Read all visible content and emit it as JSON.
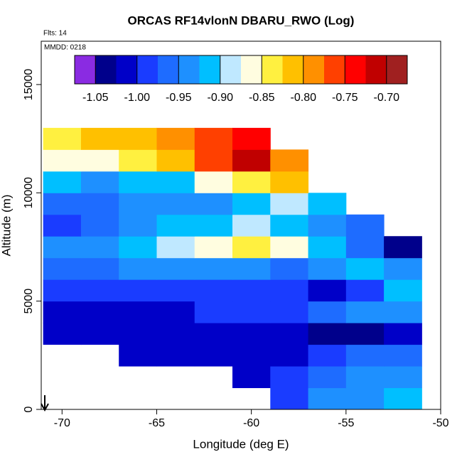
{
  "chart_data": {
    "type": "heatmap",
    "title": "ORCAS RF14vlonN DBARU_RWO (Log)",
    "subtitle": "Flts: 14",
    "annotation": "MMDD: 0218",
    "xlabel": "Longitude (deg E)",
    "ylabel": "Altitude (m)",
    "xlim": [
      -71.1,
      -50
    ],
    "ylim": [
      0,
      17000
    ],
    "xticks": [
      -70,
      -65,
      -60,
      -55,
      -50
    ],
    "yticks": [
      0,
      5000,
      10000,
      15000
    ],
    "x_edges": [
      -71,
      -69,
      -67,
      -65,
      -63,
      -61,
      -59,
      -57,
      -55,
      -53,
      -51
    ],
    "y_edges": [
      0,
      1000,
      2000,
      3000,
      4000,
      5000,
      6000,
      7000,
      8000,
      9000,
      10000,
      11000,
      12000,
      13000
    ],
    "z": [
      [
        null,
        null,
        null,
        null,
        null,
        null,
        -0.98,
        -0.95,
        -0.93,
        -0.92
      ],
      [
        null,
        null,
        null,
        null,
        null,
        -1.0,
        -0.98,
        -0.96,
        -0.95,
        -0.93
      ],
      [
        null,
        null,
        -1.0,
        -1.0,
        -1.0,
        -1.0,
        -1.0,
        -0.98,
        -0.97,
        -0.96
      ],
      [
        -1.0,
        -1.0,
        -1.01,
        -1.01,
        -1.0,
        -1.01,
        -1.02,
        -1.03,
        -1.03,
        -1.02
      ],
      [
        -1.0,
        -1.0,
        -1.0,
        -1.0,
        -0.99,
        -0.99,
        -0.98,
        -0.96,
        -0.95,
        -0.95
      ],
      [
        -0.99,
        -0.99,
        -0.98,
        -0.98,
        -0.98,
        -0.98,
        -0.99,
        -1.0,
        -0.98,
        -0.92
      ],
      [
        -0.96,
        -0.96,
        -0.95,
        -0.94,
        -0.94,
        -0.95,
        -0.96,
        -0.94,
        -0.92,
        -0.95
      ],
      [
        -0.94,
        -0.93,
        -0.9,
        -0.88,
        -0.87,
        -0.84,
        -0.86,
        -0.92,
        -0.96,
        -1.04
      ],
      [
        -0.98,
        -0.96,
        -0.94,
        -0.92,
        -0.9,
        -0.88,
        -0.91,
        -0.94,
        -0.97,
        null
      ],
      [
        -0.97,
        -0.96,
        -0.95,
        -0.94,
        -0.93,
        -0.9,
        -0.88,
        -0.9,
        null,
        null
      ],
      [
        -0.92,
        -0.93,
        -0.92,
        -0.9,
        -0.87,
        -0.83,
        -0.82,
        null,
        null,
        null
      ],
      [
        -0.87,
        -0.86,
        -0.84,
        -0.8,
        -0.76,
        -0.72,
        -0.78,
        null,
        null,
        null
      ],
      [
        -0.84,
        -0.82,
        -0.8,
        -0.79,
        -0.76,
        -0.74,
        null,
        null,
        null,
        null
      ]
    ],
    "colorbar": {
      "lim": [
        -1.075,
        -0.675
      ],
      "ticks": [
        -1.05,
        {
          "value": -1.0,
          "label": "-1.00"
        },
        -0.95,
        {
          "value": -0.9,
          "label": "-0.90"
        },
        -0.85,
        {
          "value": -0.8,
          "label": "-0.80"
        },
        -0.75,
        {
          "value": -0.7,
          "label": "-0.70"
        }
      ],
      "colors": [
        "#8a2be2",
        "#00008b",
        "#0000c8",
        "#1a3cff",
        "#1e6cff",
        "#1e90ff",
        "#00bfff",
        "#bfe8ff",
        "#fffde0",
        "#fff040",
        "#ffc000",
        "#ff9000",
        "#ff4000",
        "#ff0000",
        "#c00000",
        "#a02020"
      ]
    }
  }
}
